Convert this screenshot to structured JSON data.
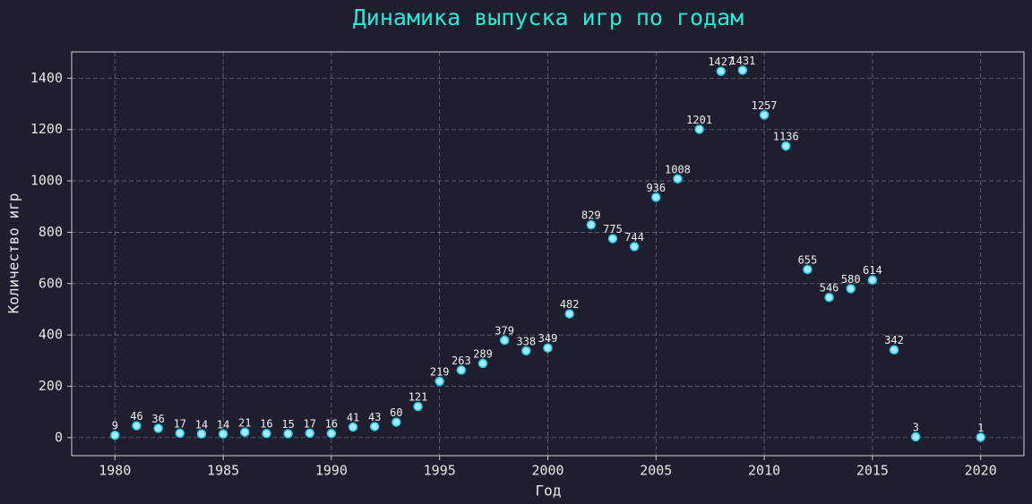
{
  "chart_data": {
    "type": "line",
    "title": "Динамика выпуска игр по годам",
    "x_label": "Год",
    "y_label": "Количество игр",
    "x": [
      1980,
      1981,
      1982,
      1983,
      1984,
      1985,
      1986,
      1987,
      1988,
      1989,
      1990,
      1991,
      1992,
      1993,
      1994,
      1995,
      1996,
      1997,
      1998,
      1999,
      2000,
      2001,
      2002,
      2003,
      2004,
      2005,
      2006,
      2007,
      2008,
      2009,
      2010,
      2011,
      2012,
      2013,
      2014,
      2015,
      2016,
      2017,
      2020
    ],
    "values": [
      9,
      46,
      36,
      17,
      14,
      14,
      21,
      16,
      15,
      17,
      16,
      41,
      43,
      60,
      121,
      219,
      263,
      289,
      379,
      338,
      349,
      482,
      829,
      775,
      744,
      936,
      1008,
      1201,
      1427,
      1431,
      1257,
      1136,
      655,
      546,
      580,
      614,
      342,
      3,
      1
    ],
    "color": "#1ec8ea",
    "xlim": [
      1978,
      2022
    ],
    "ylim": [
      -70.5,
      1502.5
    ],
    "xticks": [
      1980,
      1985,
      1990,
      1995,
      2000,
      2005,
      2010,
      2015,
      2020
    ],
    "yticks": [
      0,
      200,
      400,
      600,
      800,
      1000,
      1200,
      1400
    ],
    "grid": true
  }
}
